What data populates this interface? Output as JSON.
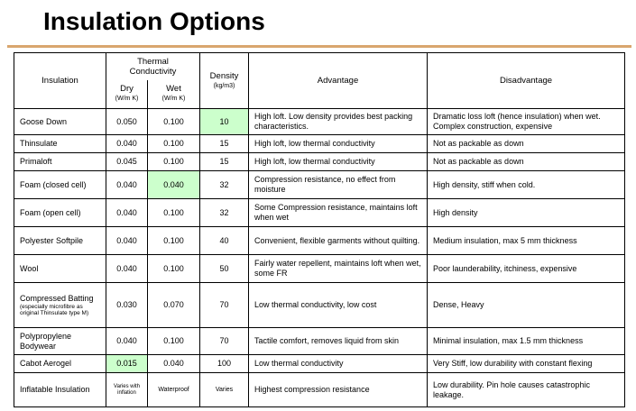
{
  "header": {
    "title": "Insulation Options"
  },
  "table": {
    "columns": {
      "insulation": "Insulation",
      "thermal": "Thermal Conductivity",
      "dry": "Dry",
      "dry_unit": "(W/m K)",
      "wet": "Wet",
      "wet_unit": "(W/m K)",
      "density": "Density",
      "density_unit": "(kg/m3)",
      "advantage": "Advantage",
      "disadvantage": "Disadvantage"
    },
    "rows": [
      [
        "Goose Down",
        "0.050",
        "0.100",
        "10",
        "High loft.  Low density provides best packing characteristics.",
        "Dramatic loss loft (hence insulation) when wet. Complex construction, expensive"
      ],
      [
        "Thinsulate",
        "0.040",
        "0.100",
        "15",
        "High loft, low thermal conductivity",
        "Not as packable as down"
      ],
      [
        "Primaloft",
        "0.045",
        "0.100",
        "15",
        "High loft, low thermal conductivity",
        "Not as packable as down"
      ],
      [
        "Foam (closed cell)",
        "0.040",
        "0.040",
        "32",
        "Compression resistance, no effect from moisture",
        "High density, stiff when cold."
      ],
      [
        "Foam (open cell)",
        "0.040",
        "0.100",
        "32",
        "Some Compression resistance, maintains loft when wet",
        "High density"
      ],
      [
        "Polyester Softpile",
        "0.040",
        "0.100",
        "40",
        "Convenient, flexible garments without quilting.",
        "Medium insulation, max 5 mm thickness"
      ],
      [
        "Wool",
        "0.040",
        "0.100",
        "50",
        "Fairly water repellent, maintains loft when wet, some FR",
        "Poor launderability, itchiness, expensive"
      ],
      [
        "Compressed Batting",
        "0.030",
        "0.070",
        "70",
        "Low thermal conductivity, low cost",
        "Dense, Heavy"
      ],
      [
        "Polypropylene Bodywear",
        "0.040",
        "0.100",
        "70",
        "Tactile comfort, removes liquid from skin",
        "Minimal insulation, max 1.5 mm thickness"
      ],
      [
        "Cabot Aerogel",
        "0.015",
        "0.040",
        "100",
        "Low thermal conductivity",
        "Very Stiff, low durability with constant flexing"
      ],
      [
        "Inflatable Insulation",
        "Varies with inflation",
        "Waterproof",
        "Varies",
        "Highest compression resistance",
        "Low durability. Pin hole causes catastrophic leakage."
      ]
    ],
    "batting_note": "(especially microfibre as original Thinsulate type M)"
  }
}
